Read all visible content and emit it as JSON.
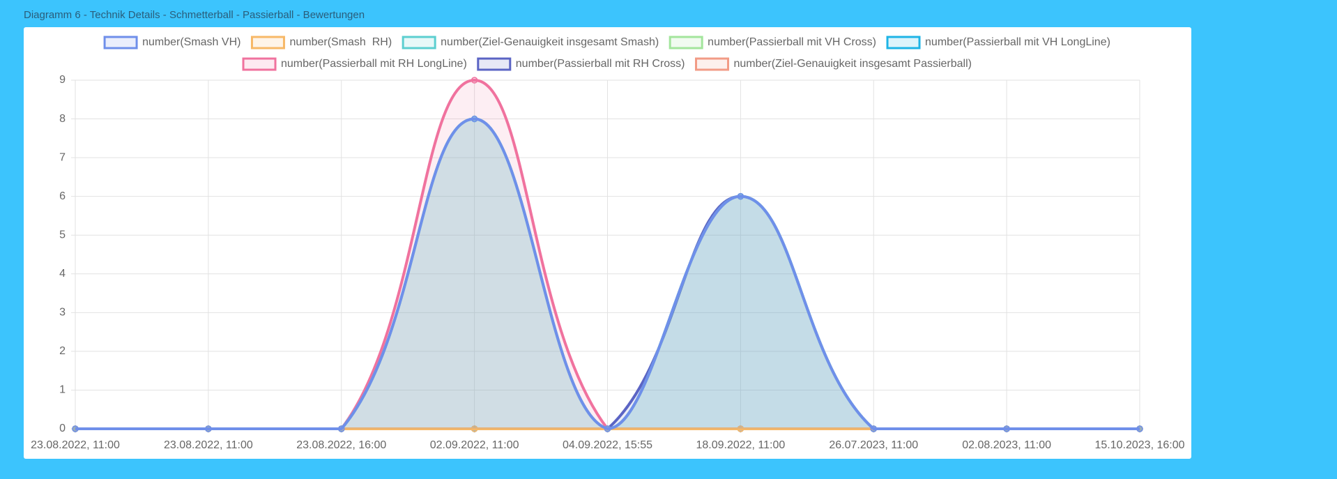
{
  "chart_data": {
    "type": "line",
    "title": "Diagramm 6 - Technik Details - Schmetterball - Passierball - Bewertungen",
    "categories": [
      "23.08.2022, 11:00",
      "23.08.2022, 11:00",
      "23.08.2022, 16:00",
      "02.09.2022, 11:00",
      "04.09.2022, 15:55",
      "18.09.2022, 11:00",
      "26.07.2023, 11:00",
      "02.08.2023, 11:00",
      "15.10.2023, 16:00"
    ],
    "series": [
      {
        "name": "number(Smash VH)",
        "color": "#6f8fea",
        "values": [
          0,
          0,
          0,
          8,
          0,
          6,
          0,
          0,
          0
        ]
      },
      {
        "name": "number(Smash  RH)",
        "color": "#f7b867",
        "values": [
          0,
          0,
          0,
          0,
          0,
          0,
          0,
          0,
          0
        ]
      },
      {
        "name": "number(Ziel-Genauigkeit insgesamt Smash)",
        "color": "#5ccfd0",
        "values": [
          0,
          0,
          0,
          8,
          0,
          6,
          0,
          0,
          0
        ]
      },
      {
        "name": "number(Passierball mit VH Cross)",
        "color": "#a3e59c",
        "values": [
          0,
          0,
          0,
          8,
          0,
          6,
          0,
          0,
          0
        ]
      },
      {
        "name": "number(Passierball mit VH LongLine)",
        "color": "#1eb4e6",
        "values": [
          0,
          0,
          0,
          0,
          0,
          0,
          0,
          0,
          0
        ]
      },
      {
        "name": "number(Passierball mit RH LongLine)",
        "color": "#f0729e",
        "values": [
          0,
          0,
          0,
          9,
          0,
          0,
          0,
          0,
          0
        ]
      },
      {
        "name": "number(Passierball mit RH Cross)",
        "color": "#5b64c4",
        "values": [
          0,
          0,
          0,
          0,
          0,
          6,
          0,
          0,
          0
        ]
      },
      {
        "name": "number(Ziel-Genauigkeit insgesamt Passierball)",
        "color": "#f29b86",
        "values": [
          0,
          0,
          0,
          0,
          0,
          0,
          0,
          0,
          0
        ]
      }
    ],
    "ylim": [
      0,
      9
    ],
    "yticks": [
      0,
      1,
      2,
      3,
      4,
      5,
      6,
      7,
      8,
      9
    ],
    "grid": true,
    "legend": "top"
  }
}
